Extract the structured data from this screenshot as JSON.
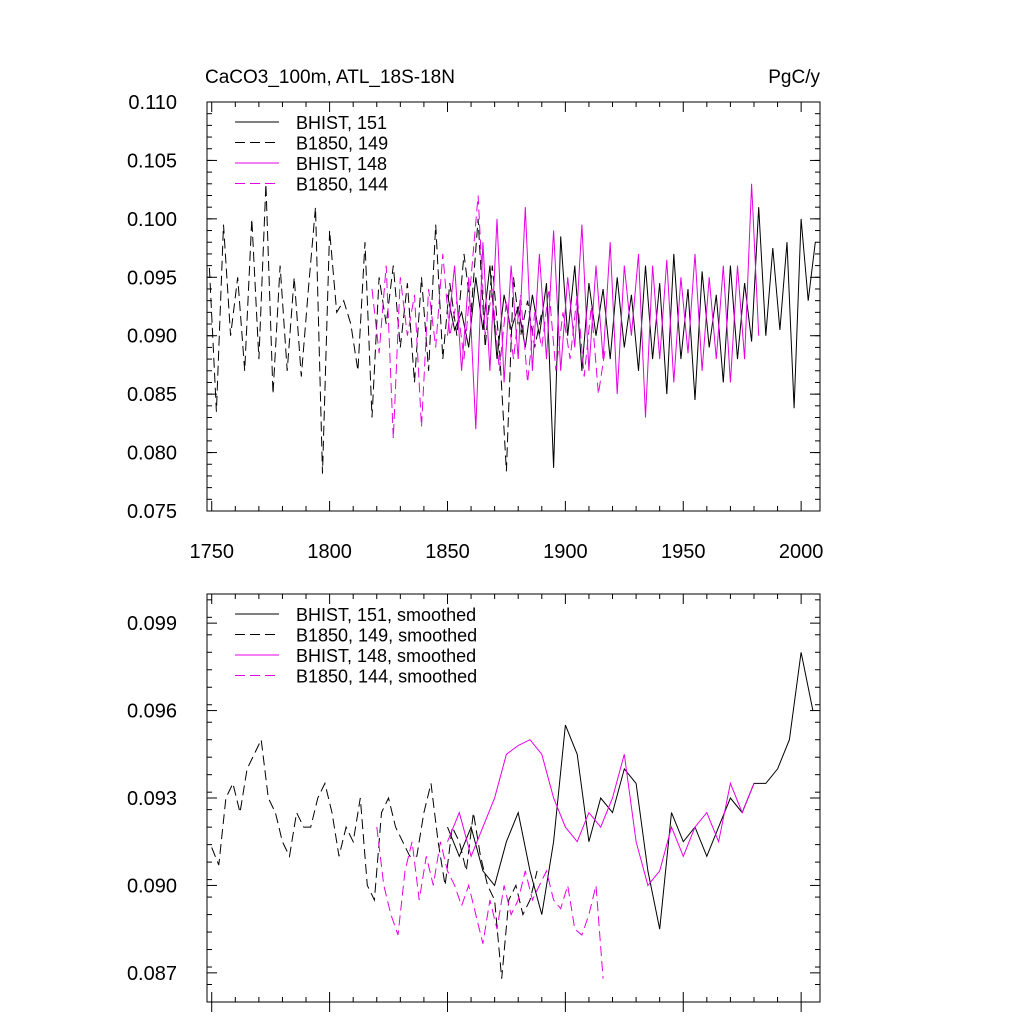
{
  "header": {
    "title_left": "CaCO3_100m, ATL_18S-18N",
    "title_right": "PgC/y"
  },
  "colors": {
    "black": "#000000",
    "magenta": "#e600e6"
  },
  "chart_data": [
    {
      "type": "line",
      "panel": "top",
      "xlim": [
        1748,
        2008
      ],
      "ylim": [
        0.075,
        0.11
      ],
      "xticks": [
        1750,
        1800,
        1850,
        1900,
        1950,
        2000
      ],
      "yticks": [
        0.075,
        0.08,
        0.085,
        0.09,
        0.095,
        0.1,
        0.105,
        0.11
      ],
      "ytick_labels": [
        "0.075",
        "0.080",
        "0.085",
        "0.090",
        "0.095",
        "0.100",
        "0.105",
        "0.110"
      ],
      "legend_position": "top-left",
      "series": [
        {
          "name": "BHIST, 151",
          "color": "#000000",
          "dash": "solid",
          "x": [
            1850,
            1853,
            1856,
            1859,
            1862,
            1865,
            1868,
            1871,
            1874,
            1877,
            1880,
            1883,
            1886,
            1889,
            1892,
            1895,
            1898,
            1901,
            1904,
            1907,
            1910,
            1913,
            1916,
            1919,
            1922,
            1925,
            1928,
            1931,
            1934,
            1937,
            1940,
            1943,
            1946,
            1949,
            1952,
            1955,
            1958,
            1961,
            1964,
            1967,
            1970,
            1973,
            1976,
            1979,
            1982,
            1985,
            1988,
            1991,
            1994,
            1997,
            2000,
            2003,
            2006
          ],
          "values": [
            0.0935,
            0.0905,
            0.092,
            0.089,
            0.095,
            0.0905,
            0.096,
            0.088,
            0.0935,
            0.0905,
            0.0925,
            0.089,
            0.0935,
            0.09,
            0.0945,
            0.0787,
            0.0985,
            0.09,
            0.096,
            0.087,
            0.0945,
            0.09,
            0.094,
            0.088,
            0.095,
            0.089,
            0.0935,
            0.087,
            0.096,
            0.088,
            0.0945,
            0.085,
            0.097,
            0.088,
            0.094,
            0.0845,
            0.0955,
            0.089,
            0.0935,
            0.086,
            0.096,
            0.088,
            0.0945,
            0.0895,
            0.101,
            0.09,
            0.0975,
            0.0905,
            0.098,
            0.0838,
            0.1,
            0.093,
            0.098
          ]
        },
        {
          "name": "B1850, 149",
          "color": "#000000",
          "dash": "dashed",
          "x": [
            1749,
            1752,
            1755,
            1758,
            1761,
            1764,
            1767,
            1770,
            1773,
            1776,
            1779,
            1782,
            1785,
            1788,
            1791,
            1794,
            1797,
            1800,
            1803,
            1806,
            1809,
            1812,
            1815,
            1818,
            1821,
            1824,
            1827,
            1830,
            1833,
            1836,
            1839,
            1842,
            1845,
            1848,
            1851,
            1854,
            1857,
            1860,
            1863,
            1866,
            1869,
            1872,
            1875,
            1878,
            1881,
            1884,
            1887,
            1890
          ],
          "values": [
            0.0958,
            0.0835,
            0.0995,
            0.09,
            0.095,
            0.087,
            0.1,
            0.088,
            0.103,
            0.085,
            0.096,
            0.087,
            0.095,
            0.0865,
            0.094,
            0.101,
            0.0782,
            0.099,
            0.092,
            0.093,
            0.091,
            0.087,
            0.098,
            0.083,
            0.095,
            0.091,
            0.096,
            0.089,
            0.0945,
            0.086,
            0.095,
            0.087,
            0.0995,
            0.088,
            0.0945,
            0.09,
            0.097,
            0.092,
            0.1,
            0.089,
            0.096,
            0.089,
            0.0784,
            0.095,
            0.09,
            0.093,
            0.089,
            0.092
          ]
        },
        {
          "name": "BHIST, 148",
          "color": "#e600e6",
          "dash": "solid",
          "x": [
            1850,
            1853,
            1856,
            1859,
            1862,
            1865,
            1868,
            1871,
            1874,
            1877,
            1880,
            1883,
            1886,
            1889,
            1892,
            1895,
            1898,
            1901,
            1904,
            1907,
            1910,
            1913,
            1916,
            1919,
            1922,
            1925,
            1928,
            1931,
            1934,
            1937,
            1940,
            1943,
            1946,
            1949,
            1952,
            1955,
            1958,
            1961,
            1964,
            1967,
            1970,
            1973,
            1976,
            1979,
            1982
          ],
          "values": [
            0.09,
            0.096,
            0.087,
            0.095,
            0.082,
            0.098,
            0.087,
            0.1,
            0.086,
            0.096,
            0.088,
            0.101,
            0.087,
            0.097,
            0.088,
            0.099,
            0.087,
            0.095,
            0.089,
            0.0995,
            0.087,
            0.096,
            0.088,
            0.098,
            0.085,
            0.096,
            0.09,
            0.097,
            0.083,
            0.096,
            0.088,
            0.0965,
            0.086,
            0.095,
            0.0885,
            0.097,
            0.087,
            0.095,
            0.088,
            0.096,
            0.086,
            0.096,
            0.088,
            0.103,
            0.09
          ]
        },
        {
          "name": "B1850, 144",
          "color": "#e600e6",
          "dash": "dashed",
          "x": [
            1818,
            1821,
            1824,
            1827,
            1830,
            1833,
            1836,
            1839,
            1842,
            1845,
            1848,
            1851,
            1854,
            1857,
            1860,
            1863,
            1866,
            1869,
            1872,
            1875,
            1878,
            1881,
            1884,
            1887,
            1890,
            1893,
            1896,
            1899,
            1902,
            1905,
            1908,
            1911,
            1914,
            1917
          ],
          "values": [
            0.094,
            0.0885,
            0.096,
            0.0812,
            0.095,
            0.09,
            0.0935,
            0.0822,
            0.094,
            0.089,
            0.097,
            0.09,
            0.093,
            0.088,
            0.095,
            0.102,
            0.09,
            0.094,
            0.087,
            0.093,
            0.088,
            0.0935,
            0.086,
            0.092,
            0.089,
            0.094,
            0.087,
            0.092,
            0.088,
            0.0935,
            0.0865,
            0.0925,
            0.085,
            0.089
          ]
        }
      ]
    },
    {
      "type": "line",
      "panel": "bottom",
      "xlim": [
        1748,
        2008
      ],
      "ylim": [
        0.086,
        0.1
      ],
      "xticks": [
        1750,
        1800,
        1850,
        1900,
        1950,
        2000
      ],
      "yticks": [
        0.087,
        0.09,
        0.093,
        0.096,
        0.099
      ],
      "ytick_labels": [
        "0.087",
        "0.090",
        "0.093",
        "0.096",
        "0.099"
      ],
      "legend_position": "top-left",
      "series": [
        {
          "name": "BHIST, 151, smoothed",
          "color": "#000000",
          "dash": "solid",
          "x": [
            1850,
            1855,
            1860,
            1865,
            1870,
            1875,
            1880,
            1885,
            1890,
            1895,
            1900,
            1905,
            1910,
            1915,
            1920,
            1925,
            1930,
            1935,
            1940,
            1945,
            1950,
            1955,
            1960,
            1965,
            1970,
            1975,
            1980,
            1985,
            1990,
            1995,
            2000,
            2005
          ],
          "values": [
            0.092,
            0.091,
            0.092,
            0.0905,
            0.09,
            0.0915,
            0.0925,
            0.0905,
            0.089,
            0.0915,
            0.0955,
            0.0945,
            0.0915,
            0.093,
            0.0925,
            0.094,
            0.0935,
            0.0905,
            0.0885,
            0.0925,
            0.0915,
            0.092,
            0.091,
            0.092,
            0.093,
            0.0925,
            0.0935,
            0.0935,
            0.094,
            0.095,
            0.098,
            0.096
          ]
        },
        {
          "name": "B1850, 149, smoothed",
          "color": "#000000",
          "dash": "dashed",
          "x": [
            1750,
            1753,
            1756,
            1759,
            1762,
            1765,
            1768,
            1771,
            1774,
            1777,
            1780,
            1783,
            1786,
            1789,
            1792,
            1795,
            1798,
            1801,
            1804,
            1807,
            1810,
            1813,
            1816,
            1819,
            1822,
            1825,
            1828,
            1831,
            1834,
            1837,
            1840,
            1843,
            1846,
            1849,
            1852,
            1855,
            1858,
            1861,
            1864,
            1867,
            1870,
            1873,
            1876,
            1879,
            1882,
            1885,
            1888
          ],
          "values": [
            0.0913,
            0.0907,
            0.093,
            0.0935,
            0.0925,
            0.094,
            0.0945,
            0.095,
            0.093,
            0.0925,
            0.0915,
            0.091,
            0.0925,
            0.092,
            0.092,
            0.093,
            0.0935,
            0.0925,
            0.091,
            0.092,
            0.0915,
            0.093,
            0.09,
            0.0895,
            0.0925,
            0.093,
            0.092,
            0.0915,
            0.091,
            0.091,
            0.0925,
            0.0935,
            0.0915,
            0.09,
            0.092,
            0.0915,
            0.0905,
            0.0925,
            0.091,
            0.09,
            0.0895,
            0.0868,
            0.0895,
            0.09,
            0.089,
            0.0895,
            0.0905
          ]
        },
        {
          "name": "BHIST, 148, smoothed",
          "color": "#e600e6",
          "dash": "solid",
          "x": [
            1850,
            1855,
            1860,
            1865,
            1870,
            1875,
            1880,
            1885,
            1890,
            1895,
            1900,
            1905,
            1910,
            1915,
            1920,
            1925,
            1930,
            1935,
            1940,
            1945,
            1950,
            1955,
            1960,
            1965,
            1970,
            1975,
            1980
          ],
          "values": [
            0.0915,
            0.0925,
            0.091,
            0.092,
            0.093,
            0.0945,
            0.0948,
            0.095,
            0.0945,
            0.093,
            0.092,
            0.0915,
            0.0925,
            0.092,
            0.093,
            0.0945,
            0.0915,
            0.09,
            0.0905,
            0.092,
            0.091,
            0.092,
            0.0925,
            0.0915,
            0.0935,
            0.0925,
            0.0935
          ]
        },
        {
          "name": "B1850, 144, smoothed",
          "color": "#e600e6",
          "dash": "dashed",
          "x": [
            1820,
            1823,
            1826,
            1829,
            1832,
            1835,
            1838,
            1841,
            1844,
            1847,
            1850,
            1853,
            1856,
            1859,
            1862,
            1865,
            1868,
            1871,
            1874,
            1877,
            1880,
            1883,
            1886,
            1889,
            1892,
            1895,
            1898,
            1901,
            1904,
            1907,
            1910,
            1913,
            1916
          ],
          "values": [
            0.092,
            0.09,
            0.089,
            0.0883,
            0.0905,
            0.0915,
            0.0895,
            0.091,
            0.09,
            0.0915,
            0.0905,
            0.09,
            0.0893,
            0.09,
            0.089,
            0.088,
            0.0895,
            0.0885,
            0.09,
            0.089,
            0.0895,
            0.0905,
            0.0895,
            0.09,
            0.0905,
            0.0895,
            0.0892,
            0.09,
            0.0885,
            0.0883,
            0.089,
            0.09,
            0.0868
          ]
        }
      ]
    }
  ]
}
